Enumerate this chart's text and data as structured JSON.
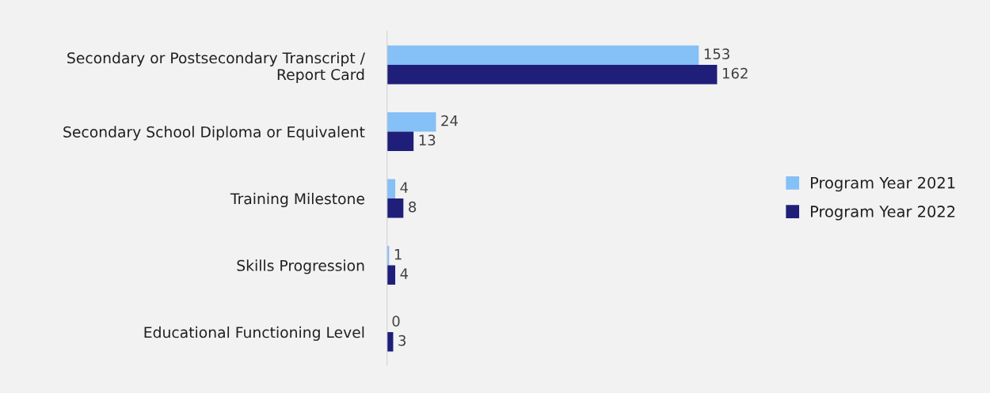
{
  "chart_data": {
    "type": "bar",
    "orientation": "horizontal",
    "categories": [
      "Secondary or Postsecondary Transcript /\nReport Card",
      "Secondary School Diploma or Equivalent",
      "Training Milestone",
      "Skills Progression",
      "Educational Functioning Level"
    ],
    "series": [
      {
        "name": "Program Year 2021",
        "color": "#85c0f6",
        "values": [
          153,
          24,
          4,
          1,
          0
        ]
      },
      {
        "name": "Program Year 2022",
        "color": "#1f1f7a",
        "values": [
          162,
          13,
          8,
          4,
          3
        ]
      }
    ],
    "data_labels": true,
    "legend": "right",
    "grid": false,
    "tick_labels": "y"
  }
}
